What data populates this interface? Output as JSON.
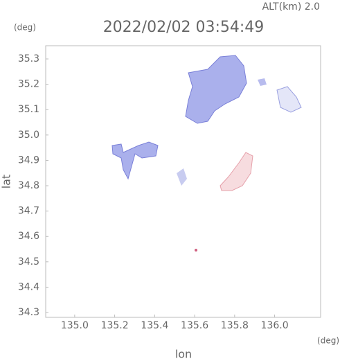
{
  "chart_data": {
    "type": "map",
    "alt_label": "ALT(km) 2.0",
    "title": "2022/02/02 03:54:49",
    "y_unit": "(deg)",
    "x_unit": "(deg)",
    "xlabel": "lon",
    "ylabel": "lat",
    "xlim": [
      134.855,
      136.23
    ],
    "ylim": [
      34.281,
      35.352
    ],
    "xticks": [
      {
        "value": 135,
        "label": "135.0"
      },
      135.2,
      135.4,
      135.6,
      135.8,
      {
        "value": 136,
        "label": "136.0"
      }
    ],
    "yticks": [
      34.3,
      34.4,
      34.5,
      34.6,
      34.7,
      34.8,
      34.9,
      {
        "value": 35,
        "label": "35.0"
      },
      35.1,
      35.2,
      35.3
    ]
  }
}
